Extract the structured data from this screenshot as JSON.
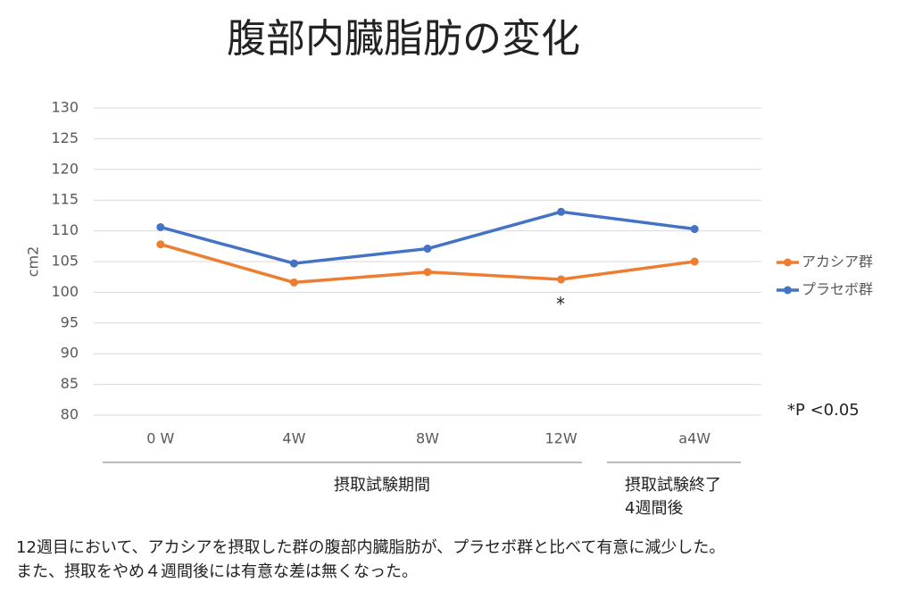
{
  "chart_data": {
    "type": "line",
    "title": "腹部内臓脂肪の変化",
    "y_label": "cm2",
    "categories": [
      "0 W",
      "4W",
      "8W",
      "12W",
      "a4W"
    ],
    "series": [
      {
        "name": "アカシア群",
        "color": "#ed7d31",
        "values": [
          107.8,
          101.6,
          103.3,
          102.1,
          105.0
        ]
      },
      {
        "name": "プラセボ群",
        "color": "#4472c4",
        "values": [
          110.6,
          104.7,
          107.1,
          113.1,
          110.3
        ]
      }
    ],
    "ylim": [
      80,
      130
    ],
    "yticks": [
      80,
      85,
      90,
      95,
      100,
      105,
      110,
      115,
      120,
      125,
      130
    ],
    "grid": true,
    "legend": "right",
    "annotations": [
      "*",
      "*P <0.05"
    ],
    "groups": [
      {
        "lines": [
          "摂取試験期間"
        ]
      },
      {
        "lines": [
          "摂取試験終了",
          "4週間後"
        ]
      }
    ],
    "notes": [
      "12週目において、アカシアを摂取した群の腹部内臓脂肪が、プラセボ群と比べて有意に減少した。",
      "また、摂取をやめ４週間後には有意な差は無くなった。"
    ]
  }
}
